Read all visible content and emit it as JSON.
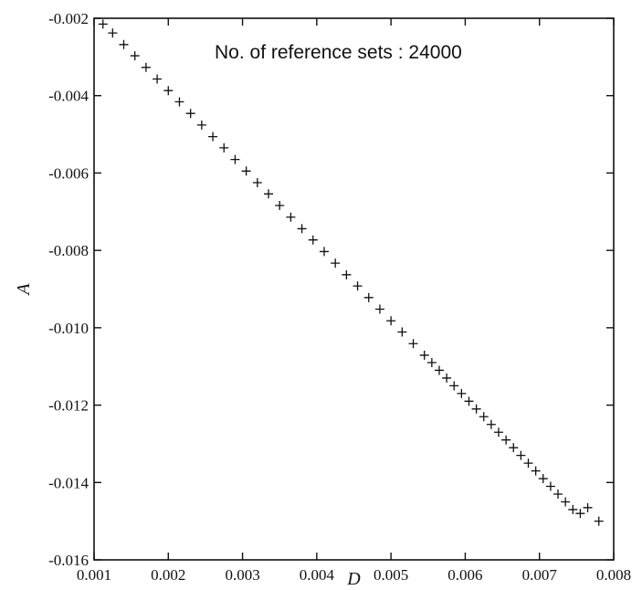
{
  "chart_data": {
    "type": "scatter",
    "xlabel": "D",
    "ylabel": "A",
    "xlim": [
      0.001,
      0.008
    ],
    "ylim": [
      -0.016,
      -0.002
    ],
    "xticks": [
      0.001,
      0.002,
      0.003,
      0.004,
      0.005,
      0.006,
      0.007,
      0.008
    ],
    "yticks": [
      -0.002,
      -0.004,
      -0.006,
      -0.008,
      -0.01,
      -0.012,
      -0.014,
      -0.016
    ],
    "xtick_labels": [
      "0.001",
      "0.002",
      "0.003",
      "0.004",
      "0.005",
      "0.006",
      "0.007",
      "0.008"
    ],
    "ytick_labels": [
      "-0.002",
      "-0.004",
      "-0.006",
      "-0.008",
      "-0.010",
      "-0.012",
      "-0.014",
      "-0.016"
    ],
    "annotation": "No. of reference sets : 24000",
    "marker": "+",
    "marker_color": "#111111",
    "grid": false,
    "series": [
      {
        "points": [
          [
            0.00112,
            -0.00215
          ],
          [
            0.00125,
            -0.00238
          ],
          [
            0.0014,
            -0.00268
          ],
          [
            0.00155,
            -0.00297
          ],
          [
            0.0017,
            -0.00327
          ],
          [
            0.00185,
            -0.00357
          ],
          [
            0.002,
            -0.00387
          ],
          [
            0.00215,
            -0.00416
          ],
          [
            0.0023,
            -0.00446
          ],
          [
            0.00245,
            -0.00476
          ],
          [
            0.0026,
            -0.00506
          ],
          [
            0.00275,
            -0.00535
          ],
          [
            0.0029,
            -0.00565
          ],
          [
            0.00305,
            -0.00595
          ],
          [
            0.0032,
            -0.00625
          ],
          [
            0.00335,
            -0.00654
          ],
          [
            0.0035,
            -0.00684
          ],
          [
            0.00365,
            -0.00714
          ],
          [
            0.0038,
            -0.00744
          ],
          [
            0.00395,
            -0.00773
          ],
          [
            0.0041,
            -0.00803
          ],
          [
            0.00425,
            -0.00833
          ],
          [
            0.0044,
            -0.00863
          ],
          [
            0.00455,
            -0.00892
          ],
          [
            0.0047,
            -0.00922
          ],
          [
            0.00485,
            -0.00952
          ],
          [
            0.005,
            -0.00982
          ],
          [
            0.00515,
            -0.01011
          ],
          [
            0.0053,
            -0.01041
          ],
          [
            0.00545,
            -0.01071
          ],
          [
            0.00555,
            -0.0109
          ],
          [
            0.00565,
            -0.0111
          ],
          [
            0.00575,
            -0.0113
          ],
          [
            0.00585,
            -0.0115
          ],
          [
            0.00595,
            -0.0117
          ],
          [
            0.00605,
            -0.0119
          ],
          [
            0.00615,
            -0.0121
          ],
          [
            0.00625,
            -0.0123
          ],
          [
            0.00635,
            -0.0125
          ],
          [
            0.00645,
            -0.0127
          ],
          [
            0.00655,
            -0.0129
          ],
          [
            0.00665,
            -0.0131
          ],
          [
            0.00675,
            -0.0133
          ],
          [
            0.00685,
            -0.0135
          ],
          [
            0.00695,
            -0.0137
          ],
          [
            0.00705,
            -0.0139
          ],
          [
            0.00715,
            -0.0141
          ],
          [
            0.00725,
            -0.0143
          ],
          [
            0.00735,
            -0.0145
          ],
          [
            0.00745,
            -0.0147
          ],
          [
            0.00755,
            -0.0148
          ],
          [
            0.00765,
            -0.01465
          ],
          [
            0.0078,
            -0.015
          ]
        ]
      }
    ]
  }
}
